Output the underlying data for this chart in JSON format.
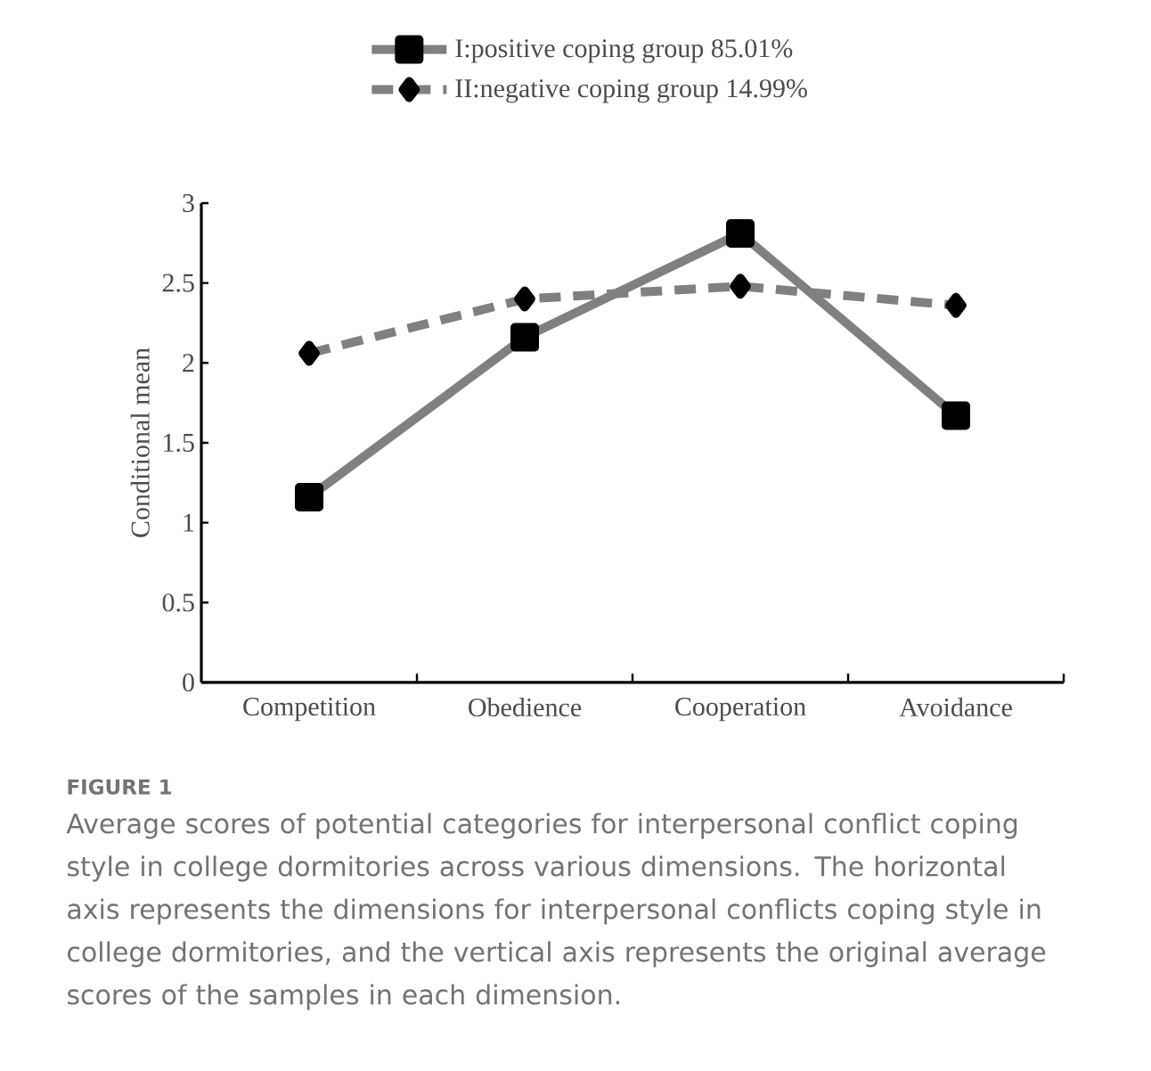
{
  "chart_data": {
    "type": "line",
    "ylabel": "Conditional mean",
    "categories": [
      "Competition",
      "Obedience",
      "Cooperation",
      "Avoidance"
    ],
    "series": [
      {
        "name": "I:positive coping group 85.01%",
        "color": "#808080",
        "values": [
          1.16,
          2.16,
          2.81,
          1.67
        ],
        "marker": "square",
        "line_style": "solid"
      },
      {
        "name": "II:negative coping group 14.99%",
        "color": "#808080",
        "values": [
          2.06,
          2.4,
          2.48,
          2.36
        ],
        "marker": "diamond",
        "line_style": "dashed"
      }
    ],
    "ylim": [
      0,
      3
    ],
    "yticks": [
      0,
      0.5,
      1,
      1.5,
      2,
      2.5,
      3
    ],
    "grid": false,
    "legend": "top",
    "annotations": [
      "FIGURE 1",
      "Average scores of potential categories for interpersonal conflict coping style in college dormitories across various dimensions. The horizontal axis represents the dimensions for interpersonal conflicts coping style in college dormitories, and the vertical axis represents the original average scores of the samples in each dimension."
    ]
  }
}
